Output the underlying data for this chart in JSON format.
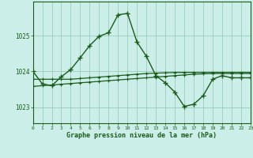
{
  "bg_color": "#cceee8",
  "grid_color": "#99ccbb",
  "line_color": "#1a5c1a",
  "xlabel": "Graphe pression niveau de la mer (hPa)",
  "hours": [
    0,
    1,
    2,
    3,
    4,
    5,
    6,
    7,
    8,
    9,
    10,
    11,
    12,
    13,
    14,
    15,
    16,
    17,
    18,
    19,
    20,
    21,
    22,
    23
  ],
  "series_main": [
    1024.0,
    1023.65,
    1023.6,
    1023.85,
    1024.05,
    1024.38,
    1024.72,
    1024.98,
    1025.08,
    1025.58,
    1025.62,
    1024.82,
    1024.42,
    1023.88,
    1023.68,
    1023.42,
    1023.02,
    1023.08,
    1023.32,
    1023.78,
    1023.88,
    1023.82,
    1023.82,
    1023.82
  ],
  "series_flat1": [
    1023.78,
    1023.78,
    1023.78,
    1023.78,
    1023.78,
    1023.8,
    1023.82,
    1023.84,
    1023.86,
    1023.88,
    1023.9,
    1023.92,
    1023.94,
    1023.95,
    1023.96,
    1023.97,
    1023.97,
    1023.97,
    1023.97,
    1023.97,
    1023.97,
    1023.97,
    1023.97,
    1023.97
  ],
  "series_flat2": [
    1023.58,
    1023.6,
    1023.62,
    1023.64,
    1023.66,
    1023.68,
    1023.7,
    1023.72,
    1023.74,
    1023.76,
    1023.78,
    1023.8,
    1023.82,
    1023.84,
    1023.86,
    1023.88,
    1023.9,
    1023.92,
    1023.93,
    1023.94,
    1023.94,
    1023.94,
    1023.94,
    1023.94
  ],
  "yticks": [
    1023.0,
    1024.0,
    1025.0
  ],
  "ylim": [
    1022.55,
    1025.95
  ],
  "xlim": [
    0,
    23
  ]
}
